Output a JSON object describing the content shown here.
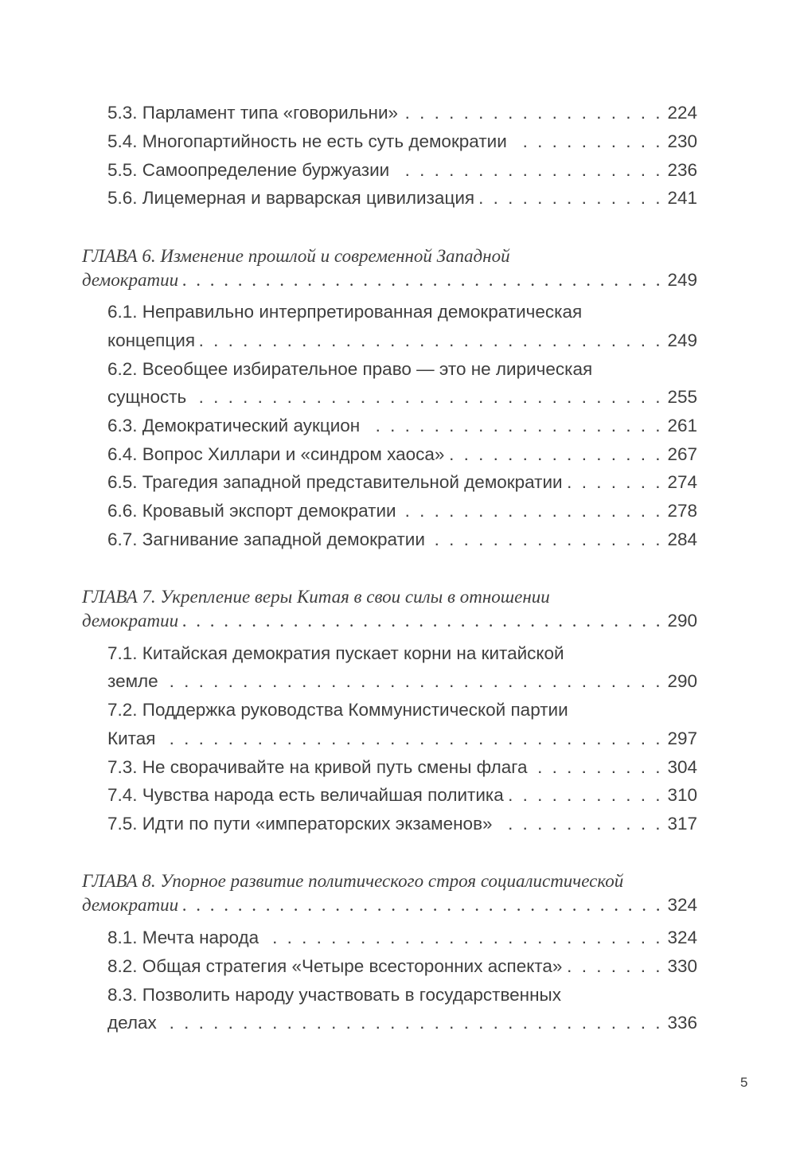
{
  "toc": {
    "s5_3": {
      "title": "5.3. Парламент типа «говорильни»",
      "page": "224"
    },
    "s5_4": {
      "title": "5.4. Многопартийность не есть суть демократии",
      "page": "230"
    },
    "s5_5": {
      "title": "5.5. Самоопределение буржуазии",
      "page": "236"
    },
    "s5_6": {
      "title": "5.6. Лицемерная и варварская цивилизация",
      "page": "241"
    },
    "ch6": {
      "line1": "ГЛАВА 6. Изменение прошлой и современной Западной",
      "line2": "демократии",
      "page": "249"
    },
    "s6_1": {
      "line1": "6.1. Неправильно интерпретированная демократическая",
      "line2": "концепция",
      "page": "249"
    },
    "s6_2": {
      "line1": "6.2. Всеобщее избирательное право — это не лирическая",
      "line2": "сущность",
      "page": "255"
    },
    "s6_3": {
      "title": "6.3. Демократический аукцион",
      "page": "261"
    },
    "s6_4": {
      "title": "6.4. Вопрос Хиллари и «синдром хаоса»",
      "page": "267"
    },
    "s6_5": {
      "title": "6.5. Трагедия западной представительной демократии",
      "page": "274"
    },
    "s6_6": {
      "title": "6.6. Кровавый экспорт демократии",
      "page": "278"
    },
    "s6_7": {
      "title": "6.7. Загнивание западной демократии",
      "page": "284"
    },
    "ch7": {
      "line1": "ГЛАВА 7. Укрепление веры Китая в свои силы в отношении",
      "line2": "демократии",
      "page": "290"
    },
    "s7_1": {
      "line1": "7.1. Китайская демократия пускает корни на китайской",
      "line2": "земле",
      "page": "290"
    },
    "s7_2": {
      "line1": "7.2. Поддержка руководства Коммунистической партии",
      "line2": "Китая",
      "page": "297"
    },
    "s7_3": {
      "title": "7.3. Не сворачивайте на кривой путь смены флага",
      "page": "304"
    },
    "s7_4": {
      "title": "7.4. Чувства народа есть величайшая политика",
      "page": "310"
    },
    "s7_5": {
      "title": "7.5. Идти по пути «императорских экзаменов»",
      "page": "317"
    },
    "ch8": {
      "line1": "ГЛАВА 8. Упорное развитие политического строя социалистической",
      "line2": "демократии",
      "page": "324"
    },
    "s8_1": {
      "title": "8.1. Мечта народа",
      "page": "324"
    },
    "s8_2": {
      "title": "8.2. Общая стратегия «Четыре всесторонних аспекта»",
      "page": "330"
    },
    "s8_3": {
      "line1": "8.3. Позволить народу участвовать в государственных",
      "line2": "делах",
      "page": "336"
    }
  },
  "page_number": "5"
}
